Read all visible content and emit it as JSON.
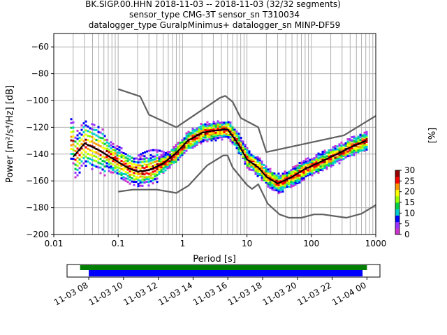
{
  "title": {
    "line1": "BK.SIGP.00.HHN   2018-11-03 -- 2018-11-03  (32/32 segments)",
    "line2": "sensor_type CMG-3T sensor_sn T310034",
    "line3": "datalogger_type GuralpMinimus+ datalogger_sn MINP-DF59"
  },
  "chart_data": {
    "type": "heatmap",
    "xlabel": "Period [s]",
    "ylabel": "Power [m²/s⁴/Hz] [dB]",
    "xscale": "log",
    "xlim": [
      0.01,
      1000
    ],
    "ylim": [
      -200,
      -50
    ],
    "x_ticks": [
      {
        "value": 0.01,
        "label": "0.01"
      },
      {
        "value": 0.1,
        "label": "0.1"
      },
      {
        "value": 1,
        "label": "1"
      },
      {
        "value": 10,
        "label": "10"
      },
      {
        "value": 100,
        "label": "100"
      },
      {
        "value": 1000,
        "label": "1000"
      }
    ],
    "y_ticks": [
      {
        "value": -60,
        "label": "−60"
      },
      {
        "value": -80,
        "label": "−80"
      },
      {
        "value": -100,
        "label": "−100"
      },
      {
        "value": -120,
        "label": "−120"
      },
      {
        "value": -140,
        "label": "−140"
      },
      {
        "value": -160,
        "label": "−160"
      },
      {
        "value": -180,
        "label": "−180"
      },
      {
        "value": -200,
        "label": "−200"
      }
    ],
    "grid": true,
    "series": [
      {
        "color": "#606060",
        "x": [
          0.1,
          0.22,
          0.3,
          0.8,
          3.8,
          4.6,
          6.0,
          8.0,
          15.0,
          20.0,
          320.0,
          1000.0
        ],
        "y": [
          -91.5,
          -97.0,
          -110.5,
          -120.0,
          -98.0,
          -96.5,
          -101.0,
          -113.0,
          -120.0,
          -138.5,
          -126.0,
          -111.5
        ]
      },
      {
        "color": "#606060",
        "x": [
          0.1,
          0.17,
          0.4,
          0.8,
          1.24,
          2.4,
          4.3,
          5.0,
          6.0,
          10.0,
          12.0,
          15.0,
          21.0,
          32.0,
          45.0,
          70.0,
          110.0,
          150.0,
          250.0,
          350.0,
          600.0,
          1000.0
        ],
        "y": [
          -168.0,
          -166.5,
          -166.5,
          -169.0,
          -163.5,
          -148.5,
          -141.0,
          -141.0,
          -150.0,
          -163.0,
          -166.0,
          -162.5,
          -177.0,
          -185.0,
          -187.5,
          -187.5,
          -185.0,
          -185.0,
          -186.5,
          -187.5,
          -184.5,
          -178.0
        ]
      },
      {
        "color": "#000000",
        "x": [
          0.02,
          0.03,
          0.05,
          0.1,
          0.15,
          0.2,
          0.3,
          0.5,
          0.8,
          1.2,
          2.0,
          3.0,
          5.0,
          7.0,
          10.0,
          15.0,
          20.0,
          30.0,
          50.0,
          80.0,
          150.0,
          250.0,
          400.0,
          700.0
        ],
        "y": [
          -142.0,
          -132.0,
          -137.0,
          -146.0,
          -151.0,
          -153.0,
          -152.0,
          -147.0,
          -139.0,
          -130.0,
          -124.0,
          -122.5,
          -121.5,
          -131.0,
          -144.0,
          -150.0,
          -157.0,
          -162.0,
          -157.0,
          -151.0,
          -145.0,
          -140.0,
          -135.0,
          -130.0
        ]
      }
    ],
    "colorbar": {
      "label": "[%]",
      "range": [
        0,
        30
      ],
      "ticks": [
        "0",
        "5",
        "10",
        "15",
        "20",
        "25",
        "30"
      ]
    },
    "timeline": {
      "tick_labels": [
        "11-03 08",
        "11-03 10",
        "11-03 12",
        "11-03 14",
        "11-03 16",
        "11-03 18",
        "11-03 20",
        "11-03 22",
        "11-04 00"
      ],
      "bars": [
        {
          "color": "#007f00",
          "start_hour": 7.5,
          "end_hour": 24.0
        },
        {
          "color": "#0000ff",
          "start_hour": 8.0,
          "end_hour": 23.75
        }
      ],
      "range_hours": [
        6.75,
        24.75
      ]
    }
  }
}
